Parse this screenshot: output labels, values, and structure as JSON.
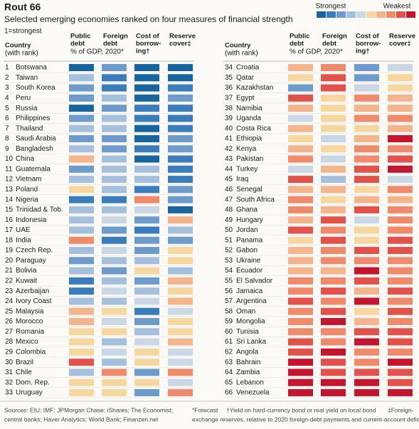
{
  "chart_data": {
    "type": "heatmap",
    "title": "Rout 66",
    "subtitle": "Selected emerging economies ranked on four measures of financial strength",
    "note": "1=strongest",
    "legend": {
      "strongest": "Strongest",
      "weakest": "Weakest"
    },
    "scale": {
      "min": 1,
      "max": 10,
      "colors": [
        "#17649f",
        "#3b7dbc",
        "#6d9bcb",
        "#a4c0dc",
        "#cad8e6",
        "#f6d7a0",
        "#f4b48c",
        "#ef8a6b",
        "#e3524a",
        "#c4152f"
      ]
    },
    "row_header": [
      "Country",
      "(with rank)"
    ],
    "columns": [
      {
        "name": [
          "Public",
          "debt"
        ]
      },
      {
        "name": [
          "Foreign",
          "debt"
        ]
      },
      {
        "name": [
          "Cost of",
          "borrow-",
          "ing†"
        ]
      },
      {
        "name": [
          "Reserve",
          "cover‡"
        ]
      }
    ],
    "units": "% of GDP, 2020*",
    "rows": [
      {
        "rank": 1,
        "name": "Botswana",
        "values": [
          1,
          3,
          1,
          1
        ]
      },
      {
        "rank": 2,
        "name": "Taiwan",
        "values": [
          4,
          2,
          1,
          1
        ]
      },
      {
        "rank": 3,
        "name": "South Korea",
        "values": [
          3,
          2,
          1,
          2
        ]
      },
      {
        "rank": 4,
        "name": "Peru",
        "values": [
          3,
          4,
          1,
          3
        ]
      },
      {
        "rank": 5,
        "name": "Russia",
        "values": [
          1,
          3,
          2,
          2
        ]
      },
      {
        "rank": 6,
        "name": "Philippines",
        "values": [
          3,
          4,
          2,
          2
        ]
      },
      {
        "rank": 7,
        "name": "Thailand",
        "values": [
          4,
          4,
          1,
          2
        ]
      },
      {
        "rank": 8,
        "name": "Saudi Arabia",
        "values": [
          3,
          3,
          1,
          3
        ]
      },
      {
        "rank": 9,
        "name": "Bangladesh",
        "values": [
          4,
          3,
          2,
          3
        ]
      },
      {
        "rank": 10,
        "name": "China",
        "values": [
          7,
          4,
          1,
          2
        ]
      },
      {
        "rank": 11,
        "name": "Guatemala",
        "values": [
          3,
          4,
          4,
          2
        ]
      },
      {
        "rank": 12,
        "name": "Vietnam",
        "values": [
          4,
          4,
          4,
          2
        ]
      },
      {
        "rank": 13,
        "name": "Poland",
        "values": [
          6,
          4,
          2,
          3
        ]
      },
      {
        "rank": 14,
        "name": "Nigeria",
        "values": [
          2,
          2,
          8,
          3
        ]
      },
      {
        "rank": 15,
        "name": "Trinidad & Tob.",
        "values": [
          4,
          4,
          5,
          1
        ]
      },
      {
        "rank": 16,
        "name": "Indonesia",
        "values": [
          4,
          5,
          3,
          7
        ]
      },
      {
        "rank": 17,
        "name": "UAE",
        "values": [
          4,
          3,
          2,
          4
        ]
      },
      {
        "rank": 18,
        "name": "India",
        "values": [
          8,
          2,
          3,
          3
        ]
      },
      {
        "rank": 19,
        "name": "Czech Rep.",
        "values": [
          4,
          5,
          3,
          6
        ]
      },
      {
        "rank": 20,
        "name": "Paraguay",
        "values": [
          3,
          4,
          4,
          6
        ]
      },
      {
        "rank": 21,
        "name": "Bolivia",
        "values": [
          4,
          3,
          6,
          4
        ]
      },
      {
        "rank": 22,
        "name": "Kuwait",
        "values": [
          2,
          4,
          3,
          7
        ]
      },
      {
        "rank": 23,
        "name": "Azerbaijan",
        "values": [
          2,
          5,
          4,
          6
        ]
      },
      {
        "rank": 24,
        "name": "Ivory Coast",
        "values": [
          4,
          4,
          5,
          7
        ]
      },
      {
        "rank": 25,
        "name": "Malaysia",
        "values": [
          7,
          6,
          2,
          5
        ]
      },
      {
        "rank": 26,
        "name": "Morocco",
        "values": [
          7,
          5,
          3,
          6
        ]
      },
      {
        "rank": 27,
        "name": "Romania",
        "values": [
          6,
          6,
          4,
          6
        ]
      },
      {
        "rank": 28,
        "name": "Mexico",
        "values": [
          6,
          4,
          5,
          7
        ]
      },
      {
        "rank": 29,
        "name": "Colombia",
        "values": [
          6,
          5,
          6,
          5
        ]
      },
      {
        "rank": 30,
        "name": "Brazil",
        "values": [
          9,
          4,
          6,
          5
        ]
      },
      {
        "rank": 31,
        "name": "Chile",
        "values": [
          4,
          8,
          3,
          8
        ]
      },
      {
        "rank": 32,
        "name": "Dom. Rep.",
        "values": [
          6,
          6,
          6,
          5
        ]
      },
      {
        "rank": 33,
        "name": "Uruguay",
        "values": [
          6,
          6,
          3,
          8
        ]
      },
      {
        "rank": 34,
        "name": "Croatia",
        "values": [
          7,
          8,
          3,
          5
        ]
      },
      {
        "rank": 35,
        "name": "Qatar",
        "values": [
          6,
          9,
          3,
          6
        ]
      },
      {
        "rank": 36,
        "name": "Kazakhstan",
        "values": [
          3,
          9,
          5,
          6
        ]
      },
      {
        "rank": 37,
        "name": "Egypt",
        "values": [
          9,
          6,
          8,
          7
        ]
      },
      {
        "rank": 38,
        "name": "Namibia",
        "values": [
          7,
          6,
          7,
          7
        ]
      },
      {
        "rank": 39,
        "name": "Uganda",
        "values": [
          5,
          6,
          8,
          8
        ]
      },
      {
        "rank": 40,
        "name": "Costa Rica",
        "values": [
          7,
          6,
          6,
          7
        ]
      },
      {
        "rank": 41,
        "name": "Ethiopia",
        "values": [
          6,
          5,
          7,
          10
        ]
      },
      {
        "rank": 42,
        "name": "Kenya",
        "values": [
          7,
          6,
          8,
          8
        ]
      },
      {
        "rank": 43,
        "name": "Pakistan",
        "values": [
          8,
          5,
          8,
          9
        ]
      },
      {
        "rank": 44,
        "name": "Turkey",
        "values": [
          5,
          7,
          9,
          10
        ]
      },
      {
        "rank": 45,
        "name": "Iraq",
        "values": [
          9,
          4,
          9,
          5
        ]
      },
      {
        "rank": 46,
        "name": "Senegal",
        "values": [
          7,
          7,
          6,
          8
        ]
      },
      {
        "rank": 47,
        "name": "South Africa",
        "values": [
          8,
          6,
          7,
          7
        ]
      },
      {
        "rank": 48,
        "name": "Ghana",
        "values": [
          8,
          7,
          9,
          8
        ]
      },
      {
        "rank": 49,
        "name": "Hungary",
        "values": [
          7,
          9,
          5,
          8
        ]
      },
      {
        "rank": 50,
        "name": "Jordan",
        "values": [
          9,
          8,
          6,
          8
        ]
      },
      {
        "rank": 51,
        "name": "Panama",
        "values": [
          6,
          9,
          6,
          9
        ]
      },
      {
        "rank": 52,
        "name": "Gabon",
        "values": [
          7,
          8,
          9,
          9
        ]
      },
      {
        "rank": 53,
        "name": "Ukraine",
        "values": [
          7,
          8,
          8,
          8
        ]
      },
      {
        "rank": 54,
        "name": "Ecuador",
        "values": [
          7,
          7,
          10,
          8
        ]
      },
      {
        "rank": 55,
        "name": "El Salvador",
        "values": [
          8,
          8,
          9,
          8
        ]
      },
      {
        "rank": 56,
        "name": "Jamaica",
        "values": [
          8,
          9,
          7,
          9
        ]
      },
      {
        "rank": 57,
        "name": "Argentina",
        "values": [
          9,
          8,
          10,
          8
        ]
      },
      {
        "rank": 58,
        "name": "Oman",
        "values": [
          8,
          9,
          6,
          9
        ]
      },
      {
        "rank": 59,
        "name": "Mongolia",
        "values": [
          8,
          10,
          7,
          8
        ]
      },
      {
        "rank": 60,
        "name": "Tunisia",
        "values": [
          8,
          8,
          9,
          9
        ]
      },
      {
        "rank": 61,
        "name": "Sri Lanka",
        "values": [
          9,
          8,
          10,
          9
        ]
      },
      {
        "rank": 62,
        "name": "Angola",
        "values": [
          9,
          10,
          8,
          8
        ]
      },
      {
        "rank": 63,
        "name": "Bahrain",
        "values": [
          10,
          9,
          8,
          10
        ]
      },
      {
        "rank": 64,
        "name": "Zambia",
        "values": [
          10,
          9,
          9,
          9
        ]
      },
      {
        "rank": 65,
        "name": "Lebanon",
        "values": [
          10,
          10,
          10,
          9
        ]
      },
      {
        "rank": 66,
        "name": "Venezuela",
        "values": [
          10,
          10,
          10,
          10
        ]
      }
    ],
    "footer": [
      [
        "Sources: EIU; IMF; JPMorgan Chase; iShares; The Economist;",
        "*Forecast",
        "†Yield on hard-currency bond or real yield on local bond",
        "‡Foreign-"
      ],
      [
        "central banks; Haver Analytics; World Bank; Finanzen.net",
        "exchange reserves, relative to 2020 foreign-debt payments and current-account deficit"
      ]
    ]
  }
}
